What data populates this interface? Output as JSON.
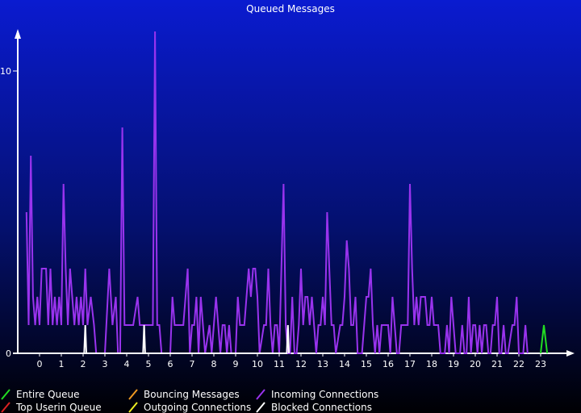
{
  "chart_data": {
    "type": "line",
    "title": "Queued Messages",
    "xlabel": "",
    "ylabel": "",
    "x_ticks": [
      "0",
      "1",
      "2",
      "3",
      "4",
      "5",
      "6",
      "7",
      "8",
      "9",
      "10",
      "11",
      "12",
      "13",
      "14",
      "15",
      "16",
      "17",
      "18",
      "19",
      "20",
      "21",
      "22",
      "23"
    ],
    "y_ticks": [
      "0",
      "10"
    ],
    "xlim": [
      -0.7,
      24.0
    ],
    "ylim": [
      0,
      11.4
    ],
    "grid": false,
    "series": [
      {
        "name": "Entire Queue",
        "color": "#22dd22",
        "points": [
          [
            23.0,
            0
          ],
          [
            23.15,
            1
          ],
          [
            23.3,
            0
          ]
        ]
      },
      {
        "name": "Top Userin Queue",
        "color": "#dd2222",
        "points": []
      },
      {
        "name": "Bouncing Messages",
        "color": "#ee9922",
        "points": []
      },
      {
        "name": "Outgoing Connections",
        "color": "#eeee22",
        "points": []
      },
      {
        "name": "Incoming Connections",
        "color": "#9933ee",
        "points": [
          [
            -0.6,
            5
          ],
          [
            -0.5,
            1
          ],
          [
            -0.4,
            7
          ],
          [
            -0.3,
            2
          ],
          [
            -0.2,
            1
          ],
          [
            -0.1,
            2
          ],
          [
            0.0,
            1
          ],
          [
            0.1,
            3
          ],
          [
            0.3,
            3
          ],
          [
            0.4,
            1
          ],
          [
            0.5,
            3
          ],
          [
            0.6,
            1
          ],
          [
            0.7,
            2
          ],
          [
            0.8,
            1
          ],
          [
            0.9,
            2
          ],
          [
            1.0,
            1
          ],
          [
            1.1,
            6
          ],
          [
            1.2,
            3
          ],
          [
            1.3,
            1
          ],
          [
            1.4,
            3
          ],
          [
            1.5,
            2
          ],
          [
            1.6,
            1
          ],
          [
            1.7,
            2
          ],
          [
            1.8,
            1
          ],
          [
            1.9,
            2
          ],
          [
            2.0,
            1
          ],
          [
            2.1,
            3
          ],
          [
            2.2,
            1
          ],
          [
            2.35,
            2
          ],
          [
            2.5,
            1
          ],
          [
            2.6,
            0
          ],
          [
            3.0,
            0
          ],
          [
            3.2,
            3
          ],
          [
            3.35,
            1
          ],
          [
            3.5,
            2
          ],
          [
            3.6,
            0
          ],
          [
            3.7,
            0
          ],
          [
            3.8,
            8
          ],
          [
            3.9,
            1
          ],
          [
            4.0,
            1
          ],
          [
            4.2,
            1
          ],
          [
            4.3,
            1
          ],
          [
            4.5,
            2
          ],
          [
            4.6,
            1
          ],
          [
            4.8,
            1
          ],
          [
            5.0,
            1
          ],
          [
            5.2,
            1
          ],
          [
            5.3,
            11.4
          ],
          [
            5.4,
            1
          ],
          [
            5.5,
            1
          ],
          [
            5.6,
            0
          ],
          [
            6.0,
            0
          ],
          [
            6.1,
            2
          ],
          [
            6.2,
            1
          ],
          [
            6.3,
            1
          ],
          [
            6.5,
            1
          ],
          [
            6.6,
            1
          ],
          [
            6.7,
            2
          ],
          [
            6.8,
            3
          ],
          [
            6.9,
            0
          ],
          [
            7.0,
            1
          ],
          [
            7.1,
            1
          ],
          [
            7.2,
            2
          ],
          [
            7.3,
            0
          ],
          [
            7.4,
            2
          ],
          [
            7.5,
            1
          ],
          [
            7.6,
            0
          ],
          [
            7.8,
            1
          ],
          [
            7.9,
            0
          ],
          [
            8.0,
            1
          ],
          [
            8.1,
            2
          ],
          [
            8.2,
            1
          ],
          [
            8.3,
            0
          ],
          [
            8.4,
            1
          ],
          [
            8.5,
            1
          ],
          [
            8.6,
            0
          ],
          [
            8.7,
            1
          ],
          [
            8.8,
            0
          ],
          [
            9.0,
            0
          ],
          [
            9.1,
            2
          ],
          [
            9.2,
            1
          ],
          [
            9.3,
            1
          ],
          [
            9.4,
            1
          ],
          [
            9.6,
            3
          ],
          [
            9.7,
            2
          ],
          [
            9.8,
            3
          ],
          [
            9.9,
            3
          ],
          [
            10.0,
            2
          ],
          [
            10.1,
            0
          ],
          [
            10.3,
            1
          ],
          [
            10.4,
            1
          ],
          [
            10.5,
            3
          ],
          [
            10.6,
            1
          ],
          [
            10.7,
            0
          ],
          [
            10.8,
            1
          ],
          [
            10.9,
            1
          ],
          [
            11.0,
            0
          ],
          [
            11.2,
            6
          ],
          [
            11.3,
            1
          ],
          [
            11.4,
            0
          ],
          [
            11.5,
            0
          ],
          [
            11.6,
            2
          ],
          [
            11.7,
            0
          ],
          [
            11.8,
            0
          ],
          [
            11.9,
            1
          ],
          [
            12.0,
            3
          ],
          [
            12.1,
            1
          ],
          [
            12.2,
            2
          ],
          [
            12.3,
            2
          ],
          [
            12.4,
            1
          ],
          [
            12.5,
            2
          ],
          [
            12.6,
            1
          ],
          [
            12.7,
            0
          ],
          [
            12.8,
            1
          ],
          [
            12.9,
            1
          ],
          [
            13.0,
            2
          ],
          [
            13.1,
            1
          ],
          [
            13.2,
            5
          ],
          [
            13.3,
            3
          ],
          [
            13.4,
            1
          ],
          [
            13.5,
            1
          ],
          [
            13.6,
            0
          ],
          [
            13.8,
            1
          ],
          [
            13.9,
            1
          ],
          [
            14.0,
            2
          ],
          [
            14.1,
            4
          ],
          [
            14.2,
            3
          ],
          [
            14.3,
            1
          ],
          [
            14.4,
            1
          ],
          [
            14.5,
            2
          ],
          [
            14.6,
            0
          ],
          [
            14.8,
            0
          ],
          [
            14.9,
            1
          ],
          [
            15.0,
            2
          ],
          [
            15.1,
            2
          ],
          [
            15.2,
            3
          ],
          [
            15.3,
            1
          ],
          [
            15.4,
            0
          ],
          [
            15.5,
            1
          ],
          [
            15.6,
            0
          ],
          [
            15.7,
            1
          ],
          [
            15.8,
            1
          ],
          [
            15.9,
            1
          ],
          [
            16.0,
            1
          ],
          [
            16.1,
            0
          ],
          [
            16.2,
            2
          ],
          [
            16.3,
            1
          ],
          [
            16.4,
            0
          ],
          [
            16.5,
            0
          ],
          [
            16.6,
            1
          ],
          [
            16.7,
            1
          ],
          [
            16.8,
            1
          ],
          [
            16.9,
            1
          ],
          [
            17.0,
            6
          ],
          [
            17.1,
            3
          ],
          [
            17.2,
            1
          ],
          [
            17.3,
            2
          ],
          [
            17.4,
            1
          ],
          [
            17.5,
            2
          ],
          [
            17.7,
            2
          ],
          [
            17.8,
            1
          ],
          [
            17.9,
            1
          ],
          [
            18.0,
            2
          ],
          [
            18.1,
            1
          ],
          [
            18.3,
            1
          ],
          [
            18.4,
            0
          ],
          [
            18.6,
            0
          ],
          [
            18.7,
            1
          ],
          [
            18.8,
            0
          ],
          [
            18.9,
            2
          ],
          [
            19.0,
            1
          ],
          [
            19.1,
            0
          ],
          [
            19.3,
            0
          ],
          [
            19.4,
            1
          ],
          [
            19.5,
            0
          ],
          [
            19.6,
            0
          ],
          [
            19.7,
            2
          ],
          [
            19.8,
            0
          ],
          [
            19.9,
            1
          ],
          [
            20.0,
            1
          ],
          [
            20.1,
            0
          ],
          [
            20.2,
            1
          ],
          [
            20.3,
            0
          ],
          [
            20.4,
            1
          ],
          [
            20.5,
            1
          ],
          [
            20.6,
            0
          ],
          [
            20.7,
            0
          ],
          [
            20.8,
            1
          ],
          [
            20.9,
            1
          ],
          [
            21.0,
            2
          ],
          [
            21.1,
            0
          ],
          [
            21.2,
            0
          ],
          [
            21.3,
            1
          ],
          [
            21.4,
            0
          ],
          [
            21.5,
            0
          ],
          [
            21.7,
            1
          ],
          [
            21.8,
            1
          ],
          [
            21.9,
            2
          ],
          [
            22.0,
            0
          ],
          [
            22.2,
            0
          ],
          [
            22.3,
            1
          ],
          [
            22.4,
            0
          ]
        ]
      },
      {
        "name": "Blocked Connections",
        "color": "#ffffff",
        "points": [
          [
            2.05,
            0
          ],
          [
            2.1,
            1
          ],
          [
            2.15,
            0
          ],
          [
            4.75,
            0
          ],
          [
            4.8,
            1
          ],
          [
            4.85,
            0
          ],
          [
            11.35,
            0
          ],
          [
            11.4,
            1
          ],
          [
            11.45,
            0
          ]
        ]
      }
    ]
  },
  "legend": [
    {
      "label": "Entire Queue",
      "color": "#22dd22"
    },
    {
      "label": "Top Userin Queue",
      "color": "#dd2222"
    },
    {
      "label": "Bouncing Messages",
      "color": "#ee9922"
    },
    {
      "label": "Outgoing Connections",
      "color": "#eeee22"
    },
    {
      "label": "Incoming Connections",
      "color": "#9933ee"
    },
    {
      "label": "Blocked Connections",
      "color": "#ffffff"
    }
  ]
}
